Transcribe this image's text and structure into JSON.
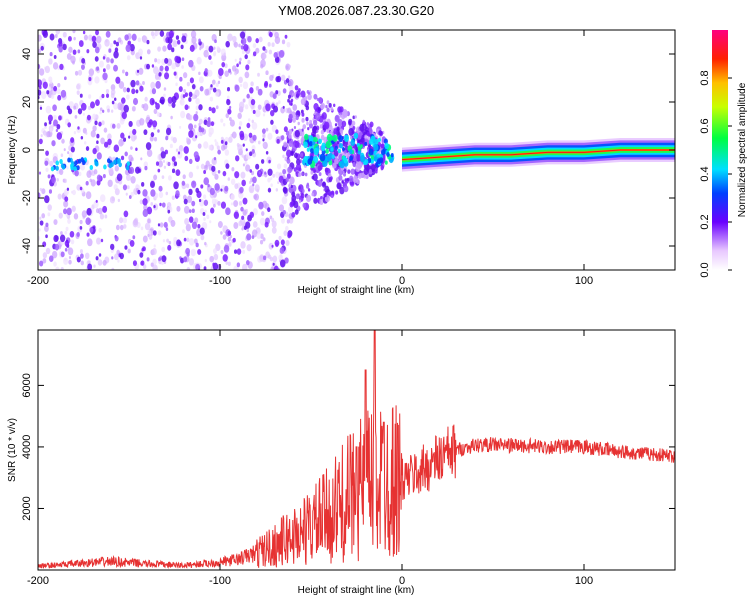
{
  "title": "YM08.2026.087.23.30.G20",
  "colors": {
    "snr_line": "#e63232",
    "axis": "#000000"
  },
  "chart_data": [
    {
      "type": "heatmap",
      "xlabel": "Height of straight line (km)",
      "ylabel": "Frequency (Hz)",
      "xlim": [
        -200,
        150
      ],
      "ylim": [
        -50,
        50
      ],
      "xticks": [
        -200,
        -100,
        0,
        100
      ],
      "xtick_labels": [
        "-200",
        "-100",
        "0",
        "100"
      ],
      "yticks": [
        -40,
        -20,
        0,
        20,
        40
      ],
      "ytick_labels": [
        "-40",
        "-20",
        "0",
        "20",
        "40"
      ],
      "colorbar": {
        "label": "Normalized spectral amplitude",
        "range": [
          0,
          1
        ],
        "ticks": [
          0,
          0.2,
          0.4,
          0.6,
          0.8
        ],
        "tick_labels": [
          "0.0",
          "0.2",
          "0.4",
          "0.6",
          "0.8"
        ]
      },
      "ridge": [
        {
          "x": 0,
          "y": -4
        },
        {
          "x": 20,
          "y": -3
        },
        {
          "x": 40,
          "y": -2
        },
        {
          "x": 60,
          "y": -2
        },
        {
          "x": 80,
          "y": -1
        },
        {
          "x": 100,
          "y": -1
        },
        {
          "x": 120,
          "y": 0
        },
        {
          "x": 150,
          "y": 0
        }
      ]
    },
    {
      "type": "line",
      "xlabel": "Height of straight line (km)",
      "ylabel": "SNR (10 * v/v)",
      "xlim": [
        -200,
        150
      ],
      "ylim": [
        0,
        7800
      ],
      "xticks": [
        -200,
        -100,
        0,
        100
      ],
      "xtick_labels": [
        "-200",
        "-100",
        "0",
        "100"
      ],
      "yticks": [
        2000,
        4000,
        6000
      ],
      "ytick_labels": [
        "2000",
        "4000",
        "6000"
      ],
      "x": [
        -200,
        -180,
        -160,
        -140,
        -120,
        -100,
        -90,
        -80,
        -70,
        -60,
        -50,
        -40,
        -30,
        -20,
        -10,
        0,
        10,
        20,
        30,
        40,
        50,
        60,
        80,
        100,
        120,
        150
      ],
      "y": [
        120,
        200,
        280,
        200,
        150,
        250,
        350,
        550,
        800,
        1100,
        1400,
        1800,
        2300,
        2800,
        3000,
        2900,
        3200,
        3600,
        3900,
        4050,
        4080,
        4050,
        4000,
        4000,
        3850,
        3700
      ],
      "peaks": [
        {
          "x": -20,
          "y": 6500
        },
        {
          "x": -15,
          "y": 7800
        },
        {
          "x": -25,
          "y": 4000
        },
        {
          "x": -10,
          "y": 4800
        }
      ]
    }
  ]
}
